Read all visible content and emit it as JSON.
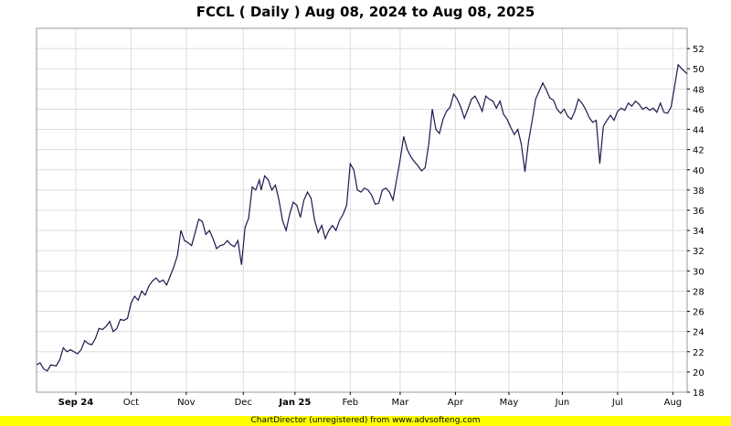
{
  "title": "FCCL ( Daily ) Aug 08, 2024 to Aug 08, 2025",
  "footer": "ChartDirector (unregistered) from www.advsofteng.com",
  "colors": {
    "line": "#1a1a4e",
    "grid": "#dddddd",
    "plot_border": "#999999",
    "footer_bg": "#ffff00"
  },
  "chart_data": {
    "type": "line",
    "title": "FCCL ( Daily ) Aug 08, 2024 to Aug 08, 2025",
    "xlabel": "",
    "ylabel": "",
    "ylim": [
      18,
      54
    ],
    "yticks": [
      18,
      20,
      22,
      24,
      26,
      28,
      30,
      32,
      34,
      36,
      38,
      40,
      42,
      44,
      46,
      48,
      50,
      52
    ],
    "xrange": [
      "2024-08-08",
      "2025-08-08"
    ],
    "xticks": [
      {
        "date": "2024-08-30",
        "label": "Sep 24",
        "bold": true
      },
      {
        "date": "2024-09-30",
        "label": "Oct",
        "bold": false
      },
      {
        "date": "2024-10-31",
        "label": "Nov",
        "bold": false
      },
      {
        "date": "2024-12-02",
        "label": "Dec",
        "bold": false
      },
      {
        "date": "2024-12-31",
        "label": "Jan 25",
        "bold": true
      },
      {
        "date": "2025-01-31",
        "label": "Feb",
        "bold": false
      },
      {
        "date": "2025-02-28",
        "label": "Mar",
        "bold": false
      },
      {
        "date": "2025-03-31",
        "label": "Apr",
        "bold": false
      },
      {
        "date": "2025-04-30",
        "label": "May",
        "bold": false
      },
      {
        "date": "2025-05-30",
        "label": "Jun",
        "bold": false
      },
      {
        "date": "2025-06-30",
        "label": "Jul",
        "bold": false
      },
      {
        "date": "2025-07-31",
        "label": "Aug",
        "bold": false
      }
    ],
    "grid": true,
    "series": [
      {
        "values": [
          [
            "2024-08-08",
            20.7
          ],
          [
            "2024-08-10",
            20.9
          ],
          [
            "2024-08-12",
            20.3
          ],
          [
            "2024-08-14",
            20.1
          ],
          [
            "2024-08-16",
            20.7
          ],
          [
            "2024-08-19",
            20.6
          ],
          [
            "2024-08-21",
            21.2
          ],
          [
            "2024-08-23",
            22.4
          ],
          [
            "2024-08-25",
            22.0
          ],
          [
            "2024-08-27",
            22.2
          ],
          [
            "2024-08-29",
            22.0
          ],
          [
            "2024-08-31",
            21.8
          ],
          [
            "2024-09-02",
            22.2
          ],
          [
            "2024-09-04",
            23.1
          ],
          [
            "2024-09-06",
            22.8
          ],
          [
            "2024-09-08",
            22.7
          ],
          [
            "2024-09-10",
            23.3
          ],
          [
            "2024-09-12",
            24.3
          ],
          [
            "2024-09-14",
            24.2
          ],
          [
            "2024-09-16",
            24.5
          ],
          [
            "2024-09-18",
            25.0
          ],
          [
            "2024-09-20",
            24.0
          ],
          [
            "2024-09-22",
            24.3
          ],
          [
            "2024-09-24",
            25.2
          ],
          [
            "2024-09-26",
            25.1
          ],
          [
            "2024-09-28",
            25.3
          ],
          [
            "2024-09-30",
            26.8
          ],
          [
            "2024-10-02",
            27.5
          ],
          [
            "2024-10-04",
            27.1
          ],
          [
            "2024-10-06",
            28.0
          ],
          [
            "2024-10-08",
            27.6
          ],
          [
            "2024-10-10",
            28.5
          ],
          [
            "2024-10-12",
            29.0
          ],
          [
            "2024-10-14",
            29.3
          ],
          [
            "2024-10-16",
            28.9
          ],
          [
            "2024-10-18",
            29.1
          ],
          [
            "2024-10-20",
            28.6
          ],
          [
            "2024-10-22",
            29.5
          ],
          [
            "2024-10-24",
            30.4
          ],
          [
            "2024-10-26",
            31.5
          ],
          [
            "2024-10-28",
            34.0
          ],
          [
            "2024-10-30",
            33.0
          ],
          [
            "2024-11-01",
            32.8
          ],
          [
            "2024-11-03",
            32.5
          ],
          [
            "2024-11-05",
            33.8
          ],
          [
            "2024-11-07",
            35.1
          ],
          [
            "2024-11-09",
            34.9
          ],
          [
            "2024-11-11",
            33.6
          ],
          [
            "2024-11-13",
            34.0
          ],
          [
            "2024-11-15",
            33.2
          ],
          [
            "2024-11-17",
            32.2
          ],
          [
            "2024-11-19",
            32.5
          ],
          [
            "2024-11-21",
            32.6
          ],
          [
            "2024-11-23",
            33.0
          ],
          [
            "2024-11-25",
            32.6
          ],
          [
            "2024-11-27",
            32.4
          ],
          [
            "2024-11-29",
            33.0
          ],
          [
            "2024-12-01",
            30.6
          ],
          [
            "2024-12-03",
            34.3
          ],
          [
            "2024-12-05",
            35.2
          ],
          [
            "2024-12-07",
            38.3
          ],
          [
            "2024-12-09",
            38.0
          ],
          [
            "2024-12-11",
            39.0
          ],
          [
            "2024-12-12",
            38.0
          ],
          [
            "2024-12-14",
            39.4
          ],
          [
            "2024-12-16",
            39.0
          ],
          [
            "2024-12-18",
            38.0
          ],
          [
            "2024-12-20",
            38.5
          ],
          [
            "2024-12-22",
            37.0
          ],
          [
            "2024-12-24",
            35.0
          ],
          [
            "2024-12-26",
            34.0
          ],
          [
            "2024-12-28",
            35.6
          ],
          [
            "2024-12-30",
            36.8
          ],
          [
            "2025-01-01",
            36.5
          ],
          [
            "2025-01-03",
            35.3
          ],
          [
            "2025-01-05",
            37.0
          ],
          [
            "2025-01-07",
            37.8
          ],
          [
            "2025-01-09",
            37.2
          ],
          [
            "2025-01-11",
            35.0
          ],
          [
            "2025-01-13",
            33.8
          ],
          [
            "2025-01-15",
            34.5
          ],
          [
            "2025-01-17",
            33.2
          ],
          [
            "2025-01-19",
            34.0
          ],
          [
            "2025-01-21",
            34.5
          ],
          [
            "2025-01-23",
            34.0
          ],
          [
            "2025-01-25",
            35.0
          ],
          [
            "2025-01-27",
            35.6
          ],
          [
            "2025-01-29",
            36.5
          ],
          [
            "2025-01-31",
            40.6
          ],
          [
            "2025-02-02",
            40.0
          ],
          [
            "2025-02-04",
            38.0
          ],
          [
            "2025-02-06",
            37.8
          ],
          [
            "2025-02-08",
            38.2
          ],
          [
            "2025-02-10",
            38.0
          ],
          [
            "2025-02-12",
            37.5
          ],
          [
            "2025-02-14",
            36.6
          ],
          [
            "2025-02-16",
            36.7
          ],
          [
            "2025-02-18",
            38.0
          ],
          [
            "2025-02-20",
            38.2
          ],
          [
            "2025-02-22",
            37.8
          ],
          [
            "2025-02-24",
            37.0
          ],
          [
            "2025-02-26",
            39.0
          ],
          [
            "2025-02-28",
            41.0
          ],
          [
            "2025-03-02",
            43.3
          ],
          [
            "2025-03-04",
            42.0
          ],
          [
            "2025-03-06",
            41.3
          ],
          [
            "2025-03-08",
            40.8
          ],
          [
            "2025-03-10",
            40.4
          ],
          [
            "2025-03-12",
            39.9
          ],
          [
            "2025-03-14",
            40.2
          ],
          [
            "2025-03-16",
            42.5
          ],
          [
            "2025-03-18",
            46.0
          ],
          [
            "2025-03-20",
            44.0
          ],
          [
            "2025-03-22",
            43.6
          ],
          [
            "2025-03-24",
            45.0
          ],
          [
            "2025-03-26",
            45.8
          ],
          [
            "2025-03-28",
            46.2
          ],
          [
            "2025-03-30",
            47.5
          ],
          [
            "2025-04-01",
            47.0
          ],
          [
            "2025-04-03",
            46.2
          ],
          [
            "2025-04-05",
            45.1
          ],
          [
            "2025-04-07",
            46.0
          ],
          [
            "2025-04-09",
            47.0
          ],
          [
            "2025-04-11",
            47.3
          ],
          [
            "2025-04-13",
            46.6
          ],
          [
            "2025-04-15",
            45.8
          ],
          [
            "2025-04-17",
            47.3
          ],
          [
            "2025-04-19",
            47.0
          ],
          [
            "2025-04-21",
            46.8
          ],
          [
            "2025-04-23",
            46.1
          ],
          [
            "2025-04-25",
            46.8
          ],
          [
            "2025-04-27",
            45.5
          ],
          [
            "2025-04-29",
            45.0
          ],
          [
            "2025-05-01",
            44.2
          ],
          [
            "2025-05-03",
            43.5
          ],
          [
            "2025-05-05",
            44.0
          ],
          [
            "2025-05-07",
            42.5
          ],
          [
            "2025-05-09",
            39.8
          ],
          [
            "2025-05-11",
            42.8
          ],
          [
            "2025-05-13",
            44.8
          ],
          [
            "2025-05-15",
            47.0
          ],
          [
            "2025-05-17",
            47.8
          ],
          [
            "2025-05-19",
            48.6
          ],
          [
            "2025-05-21",
            47.9
          ],
          [
            "2025-05-23",
            47.1
          ],
          [
            "2025-05-25",
            46.9
          ],
          [
            "2025-05-27",
            46.0
          ],
          [
            "2025-05-29",
            45.6
          ],
          [
            "2025-05-31",
            46.0
          ],
          [
            "2025-06-02",
            45.3
          ],
          [
            "2025-06-04",
            45.0
          ],
          [
            "2025-06-06",
            45.8
          ],
          [
            "2025-06-08",
            47.0
          ],
          [
            "2025-06-10",
            46.6
          ],
          [
            "2025-06-12",
            46.0
          ],
          [
            "2025-06-14",
            45.2
          ],
          [
            "2025-06-16",
            44.7
          ],
          [
            "2025-06-18",
            44.9
          ],
          [
            "2025-06-20",
            40.6
          ],
          [
            "2025-06-22",
            44.3
          ],
          [
            "2025-06-24",
            44.9
          ],
          [
            "2025-06-26",
            45.4
          ],
          [
            "2025-06-28",
            44.9
          ],
          [
            "2025-06-30",
            45.8
          ],
          [
            "2025-07-02",
            46.1
          ],
          [
            "2025-07-04",
            45.9
          ],
          [
            "2025-07-06",
            46.6
          ],
          [
            "2025-07-08",
            46.3
          ],
          [
            "2025-07-10",
            46.8
          ],
          [
            "2025-07-12",
            46.5
          ],
          [
            "2025-07-14",
            46.0
          ],
          [
            "2025-07-16",
            46.2
          ],
          [
            "2025-07-18",
            45.9
          ],
          [
            "2025-07-20",
            46.1
          ],
          [
            "2025-07-22",
            45.7
          ],
          [
            "2025-07-24",
            46.6
          ],
          [
            "2025-07-26",
            45.7
          ],
          [
            "2025-07-28",
            45.6
          ],
          [
            "2025-07-30",
            46.2
          ],
          [
            "2025-08-01",
            48.3
          ],
          [
            "2025-08-03",
            50.4
          ],
          [
            "2025-08-05",
            50.0
          ],
          [
            "2025-08-08",
            49.5
          ]
        ]
      }
    ]
  }
}
